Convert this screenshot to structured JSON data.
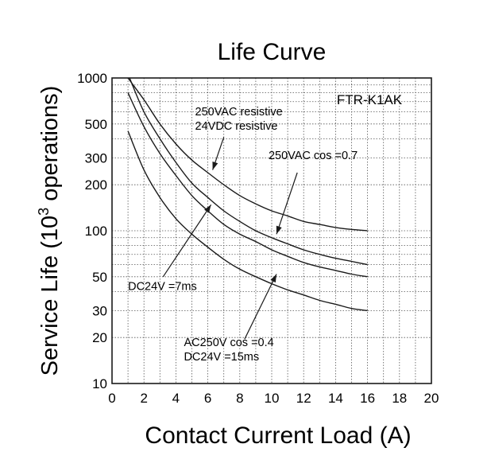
{
  "chart_data": {
    "type": "line",
    "title": "Life Curve",
    "xlabel": "Contact Current Load (A)",
    "ylabel_main": "Service Life (10",
    "ylabel_sup": "3",
    "ylabel_tail": " operations)",
    "model": "FTR-K1AK",
    "x_scale": "linear",
    "y_scale": "log",
    "xlim": [
      0,
      20
    ],
    "ylim": [
      10,
      1000
    ],
    "x_ticks": [
      "0",
      "2",
      "4",
      "6",
      "8",
      "10",
      "12",
      "14",
      "16",
      "18",
      "20"
    ],
    "y_ticks": [
      "10",
      "20",
      "30",
      "50",
      "100",
      "200",
      "300",
      "500",
      "1000"
    ],
    "grid": true,
    "series": [
      {
        "x": [
          1.0,
          2,
          3,
          4,
          5,
          6,
          7,
          8,
          9,
          10,
          11,
          12,
          13,
          14,
          15,
          16
        ],
        "y": [
          1000,
          720,
          500,
          370,
          290,
          240,
          200,
          170,
          150,
          135,
          125,
          115,
          110,
          105,
          102,
          100
        ]
      },
      {
        "x": [
          1.1,
          2,
          3,
          4,
          5,
          6,
          7,
          8,
          9,
          10,
          11,
          12,
          13,
          14,
          15,
          16
        ],
        "y": [
          1000,
          600,
          400,
          280,
          205,
          165,
          135,
          115,
          100,
          90,
          82,
          75,
          70,
          66,
          63,
          60
        ]
      },
      {
        "x": [
          1.0,
          2,
          3,
          4,
          5,
          6,
          7,
          8,
          9,
          10,
          11,
          12,
          13,
          14,
          15,
          16
        ],
        "y": [
          800,
          480,
          320,
          230,
          170,
          135,
          110,
          95,
          85,
          75,
          68,
          62,
          58,
          55,
          52,
          50
        ]
      },
      {
        "x": [
          1.0,
          2,
          3,
          4,
          5,
          6,
          7,
          8,
          9,
          10,
          11,
          12,
          13,
          14,
          15,
          16
        ],
        "y": [
          450,
          250,
          165,
          120,
          95,
          78,
          65,
          56,
          50,
          45,
          41,
          38,
          35,
          33,
          31,
          30
        ]
      }
    ],
    "annotations": [
      {
        "lines": [
          "250VAC resistive",
          "24VDC resistive"
        ],
        "text_pos": [
          5.2,
          570
        ],
        "arrow_from": [
          7.0,
          410
        ],
        "arrow_to": [
          6.3,
          250
        ]
      },
      {
        "lines": [
          "250VAC cos =0.7"
        ],
        "text_pos": [
          9.8,
          295
        ],
        "arrow_from": [
          11.6,
          240
        ],
        "arrow_to": [
          10.3,
          95
        ]
      },
      {
        "lines": [
          "DC24V  =7ms"
        ],
        "text_pos": [
          1.0,
          41
        ],
        "arrow_from": [
          3.2,
          50
        ],
        "arrow_to": [
          6.2,
          148
        ]
      },
      {
        "lines": [
          "AC250V cos =0.4",
          "DC24V  =15ms"
        ],
        "text_pos": [
          4.5,
          17.6
        ],
        "arrow_from": [
          8.3,
          19.5
        ],
        "arrow_to": [
          10.3,
          52
        ]
      }
    ]
  }
}
